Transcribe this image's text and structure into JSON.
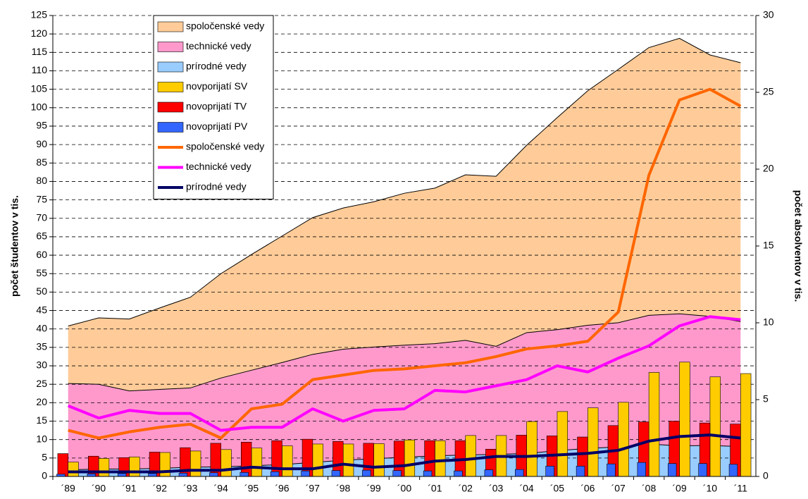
{
  "chart_data": {
    "type": "combo",
    "y_label": "počet študentov v tis.",
    "y2_label": "počet absolventov v tis.",
    "categories": [
      "´89",
      "´90",
      "´91",
      "´92",
      "´93",
      "´94",
      "´95",
      "´96",
      "´97",
      "´98",
      "´99",
      "´00",
      "´01",
      "´02",
      "´03",
      "´04",
      "´05",
      "´06",
      "´07",
      "´08",
      "´09",
      "´10",
      "´11"
    ],
    "ylim": [
      0,
      125
    ],
    "yticks": [
      0,
      5,
      10,
      15,
      20,
      25,
      30,
      35,
      40,
      45,
      50,
      55,
      60,
      65,
      70,
      75,
      80,
      85,
      90,
      95,
      100,
      105,
      110,
      115,
      120,
      125
    ],
    "y2lim": [
      0,
      30
    ],
    "y2ticks": [
      0,
      5,
      10,
      15,
      20,
      25,
      30
    ],
    "grid": true,
    "series": [
      {
        "name": "spoločenské vedy",
        "type": "area",
        "stack": "areas",
        "color": "#ffcc99",
        "values": [
          15.6,
          18,
          19.5,
          22.1,
          24.6,
          28.3,
          31.4,
          34.3,
          37.1,
          38.3,
          39.4,
          41.2,
          42.2,
          44.9,
          46.1,
          50.8,
          57.5,
          63.6,
          68.7,
          72.6,
          74.7,
          70.9,
          70.2
        ]
      },
      {
        "name": "technické vedy",
        "type": "area",
        "stack": "areas",
        "color": "#ff99cc",
        "values": [
          23.4,
          23,
          21.2,
          21.4,
          21.5,
          24.1,
          25.9,
          27.7,
          29.3,
          30.1,
          30.3,
          30.4,
          30.4,
          31.1,
          29.3,
          32.8,
          32.8,
          33.4,
          33.7,
          34.9,
          35.8,
          35,
          33.9
        ]
      },
      {
        "name": "prírodné vedy",
        "type": "area",
        "stack": "areas",
        "color": "#99ccff",
        "values": [
          1.8,
          2,
          2,
          2.2,
          2.5,
          2.6,
          2.9,
          3.2,
          3.8,
          4.4,
          4.8,
          5.2,
          5.6,
          5.8,
          6,
          6.2,
          7,
          7.6,
          8,
          8.8,
          8.3,
          8.4,
          8.1
        ]
      },
      {
        "name": "novporijatí SV",
        "type": "bar",
        "color": "#ffcc00",
        "values": [
          3.9,
          4.9,
          5.3,
          6.5,
          6.9,
          7.3,
          7.7,
          8.3,
          8.8,
          8.8,
          8.9,
          9.9,
          9.7,
          11.1,
          11.1,
          14.9,
          17.6,
          18.6,
          20.1,
          28.2,
          31,
          27,
          27.9
        ]
      },
      {
        "name": "novoprijatí TV",
        "type": "bar",
        "color": "#ff0000",
        "values": [
          6.2,
          5.5,
          5.1,
          6.6,
          7.8,
          9,
          9.3,
          9.7,
          10.1,
          9.5,
          9,
          9.6,
          9.7,
          9.7,
          7.4,
          11.2,
          11,
          10.7,
          13.8,
          14.8,
          15,
          14.5,
          14.2
        ]
      },
      {
        "name": "novoprijatí PV",
        "type": "bar",
        "color": "#3366ff",
        "values": [
          0.6,
          0.7,
          0.8,
          0.8,
          0.9,
          1,
          1.1,
          1.3,
          1.5,
          1.6,
          1.7,
          1.6,
          1.5,
          1.5,
          1.8,
          1.9,
          2.8,
          2.8,
          3.4,
          3.8,
          3.5,
          3.5,
          3.3
        ]
      },
      {
        "name": "spoločenské vedy",
        "type": "line",
        "axis": "y2",
        "color": "#ff6600",
        "values": [
          3,
          2.5,
          2.9,
          3.2,
          3.4,
          2.5,
          4.4,
          4.7,
          6.3,
          6.6,
          6.9,
          7,
          7.2,
          7.4,
          7.8,
          8.3,
          8.5,
          8.8,
          10.7,
          19.6,
          24.5,
          25.2,
          24.1
        ]
      },
      {
        "name": "technické vedy",
        "type": "line",
        "axis": "y2",
        "color": "#ff00ff",
        "values": [
          4.6,
          3.8,
          4.3,
          4.1,
          4.1,
          3,
          3.2,
          3.2,
          4.4,
          3.6,
          4.3,
          4.4,
          5.6,
          5.5,
          5.9,
          6.3,
          7.2,
          6.8,
          7.7,
          8.5,
          9.8,
          10.4,
          10.2
        ]
      },
      {
        "name": "prírodné vedy",
        "type": "line",
        "axis": "y2",
        "color": "#000066",
        "values": [
          0.3,
          0.3,
          0.3,
          0.3,
          0.4,
          0.4,
          0.6,
          0.5,
          0.5,
          0.8,
          0.6,
          0.7,
          1,
          1.1,
          1.3,
          1.3,
          1.4,
          1.5,
          1.7,
          2.3,
          2.6,
          2.7,
          2.5
        ]
      }
    ]
  }
}
